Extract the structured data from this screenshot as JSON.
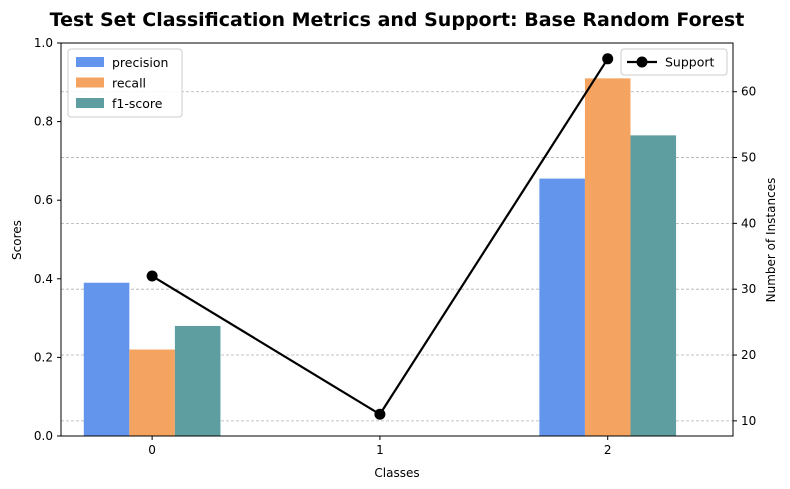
{
  "chart_data": {
    "type": "bar",
    "title": "Test Set Classification Metrics and Support: Base Random Forest",
    "xlabel": "Classes",
    "ylabel": "Scores",
    "y2label": "Number of Instances",
    "categories": [
      "0",
      "1",
      "2"
    ],
    "ylim": [
      0,
      1.0
    ],
    "yticks": [
      "0.0",
      "0.2",
      "0.4",
      "0.6",
      "0.8",
      "1.0"
    ],
    "y2lim": [
      7.7,
      67.4
    ],
    "y2ticks": [
      "10",
      "20",
      "30",
      "40",
      "50",
      "60"
    ],
    "grid": "right-axis horizontal dashed",
    "series": [
      {
        "name": "precision",
        "color": "#6495ED",
        "values": [
          0.39,
          0.0,
          0.655
        ]
      },
      {
        "name": "recall",
        "color": "#F4A460",
        "values": [
          0.22,
          0.0,
          0.91
        ]
      },
      {
        "name": "f1-score",
        "color": "#5F9EA0",
        "values": [
          0.28,
          0.0,
          0.765
        ]
      }
    ],
    "line_series": {
      "name": "Support",
      "color": "#000000",
      "values": [
        32,
        11,
        65
      ]
    },
    "legend_left_position": "upper-left",
    "legend_right_position": "upper-right"
  }
}
